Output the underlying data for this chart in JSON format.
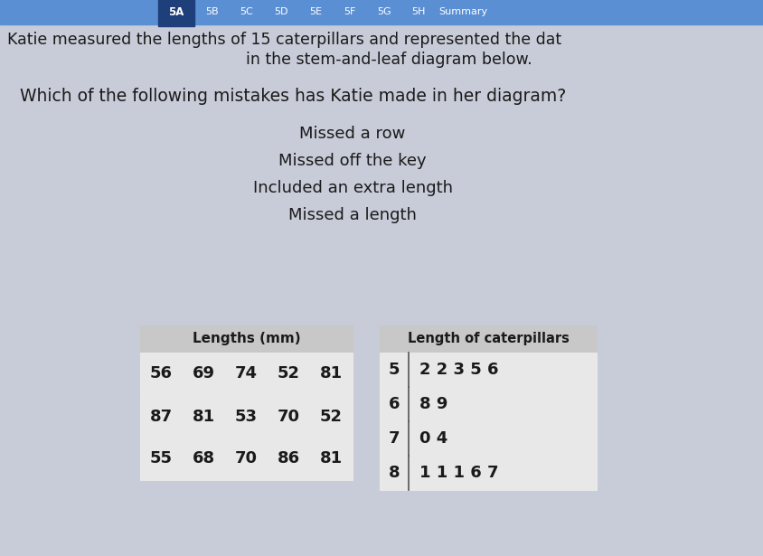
{
  "bg_color": "#c8ccd8",
  "tab_bar_bg": "#5b8fd4",
  "active_tab_bg": "#1e3f7a",
  "tab_text_color": "#ffffff",
  "tabs": [
    "5A",
    "5B",
    "5C",
    "5D",
    "5E",
    "5F",
    "5G",
    "5H",
    "Summary"
  ],
  "active_tab": "5A",
  "intro_line1": "Katie measured the lengths of 15 caterpillars and represented the dat",
  "intro_line2": "in the stem-and-leaf diagram below.",
  "question": "Which of the following mistakes has Katie made in her diagram?",
  "options": [
    "Missed a row",
    "Missed off the key",
    "Included an extra length",
    "Missed a length"
  ],
  "lengths_header": "Lengths (mm)",
  "lengths_rows": [
    [
      "56",
      "69",
      "74",
      "52",
      "81"
    ],
    [
      "87",
      "81",
      "53",
      "70",
      "52"
    ],
    [
      "55",
      "68",
      "70",
      "86",
      "81"
    ]
  ],
  "stemleaf_header": "Length of caterpillars",
  "stemleaf_rows": [
    [
      "5",
      "2 2 3 5 6"
    ],
    [
      "6",
      "8 9"
    ],
    [
      "7",
      "0 4"
    ],
    [
      "8",
      "1 1 1 6 7"
    ]
  ],
  "font_color": "#1a1a1a",
  "table_bg": "#e8e8e8",
  "table_header_bg": "#c8c8c8",
  "table_border": "#999999"
}
